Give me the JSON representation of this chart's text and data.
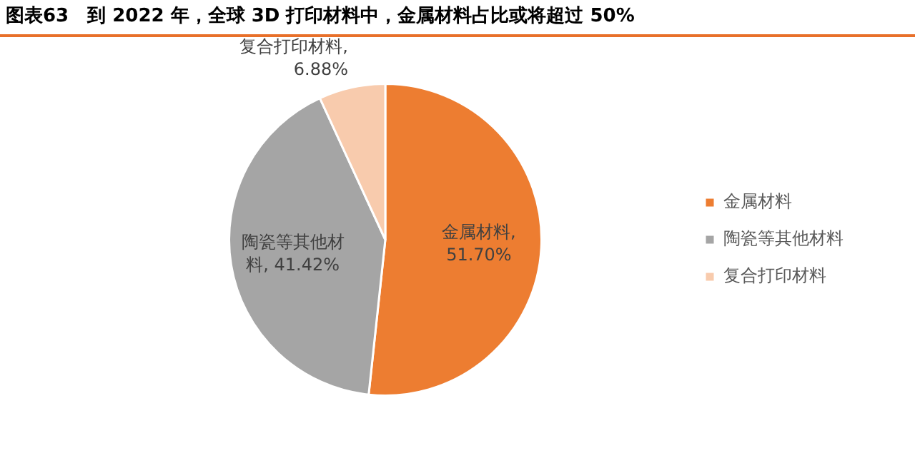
{
  "chart_data": {
    "type": "pie",
    "title": "图表63　到 2022 年，全球 3D 打印材料中，金属材料占比或将超过 50%",
    "categories": [
      "金属材料",
      "陶瓷等其他材料",
      "复合打印材料"
    ],
    "values": [
      51.7,
      41.42,
      6.88
    ],
    "colors": [
      "#ed7d31",
      "#a5a5a5",
      "#f8cbad"
    ],
    "value_labels": [
      "金属材料, 51.70%",
      "陶瓷等其他材料, 41.42%",
      "复合打印材料, 6.88%"
    ],
    "legend": "right"
  }
}
